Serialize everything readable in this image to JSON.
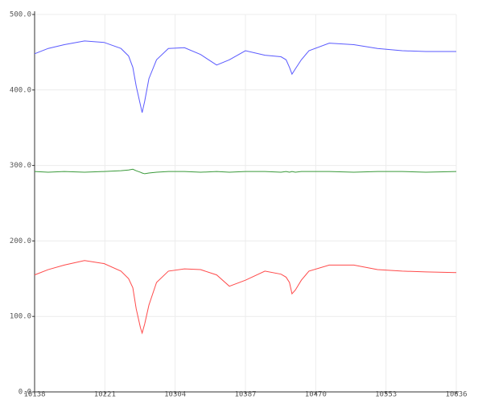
{
  "chart_data": {
    "type": "line",
    "x": [
      10138,
      10154,
      10173,
      10197,
      10220,
      10240,
      10249,
      10254,
      10258,
      10263,
      10265,
      10268,
      10273,
      10282,
      10296,
      10315,
      10334,
      10353,
      10368,
      10387,
      10410,
      10429,
      10435,
      10439,
      10442,
      10446,
      10453,
      10462,
      10486,
      10515,
      10543,
      10572,
      10600,
      10636
    ],
    "series": [
      {
        "color": "#5a5aff",
        "values": [
          448,
          455,
          460,
          465,
          463,
          455,
          445,
          430,
          405,
          380,
          370,
          385,
          415,
          440,
          455,
          456,
          447,
          433,
          440,
          452,
          446,
          444,
          440,
          430,
          421,
          428,
          440,
          452,
          462,
          460,
          455,
          452,
          451,
          451
        ]
      },
      {
        "color": "#3a9a3a",
        "values": [
          292,
          291,
          292,
          291,
          292,
          293,
          294,
          295,
          293,
          291,
          290,
          289,
          290,
          291,
          292,
          292,
          291,
          292,
          291,
          292,
          292,
          291,
          292,
          291,
          292,
          291,
          292,
          292,
          292,
          291,
          292,
          292,
          291,
          292
        ]
      },
      {
        "color": "#ff4a4a",
        "values": [
          155,
          162,
          168,
          174,
          170,
          160,
          150,
          138,
          110,
          85,
          78,
          90,
          115,
          145,
          160,
          163,
          162,
          155,
          140,
          148,
          160,
          156,
          152,
          145,
          130,
          135,
          148,
          160,
          168,
          168,
          162,
          160,
          159,
          158
        ]
      }
    ],
    "xlim": [
      10138,
      10636
    ],
    "xticks": [
      10138,
      10221,
      10304,
      10387,
      10470,
      10553,
      10636
    ],
    "ylim": [
      0,
      500
    ],
    "yticks": [
      {
        "value": 0,
        "label": "0.0"
      },
      {
        "value": 100,
        "label": "100.0"
      },
      {
        "value": 200,
        "label": "200.0"
      },
      {
        "value": 300,
        "label": "300.0"
      },
      {
        "value": 400,
        "label": "400.0"
      },
      {
        "value": 500,
        "label": "500.0"
      }
    ],
    "grid": true
  }
}
